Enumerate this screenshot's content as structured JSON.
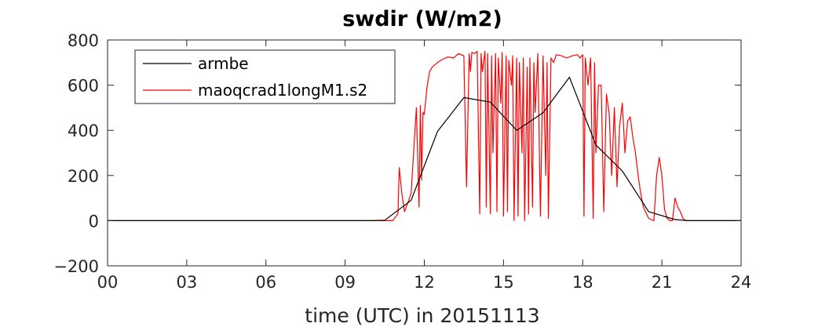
{
  "chart_data": {
    "type": "line",
    "title": "swdir  (W/m2)",
    "xlabel": "time (UTC) in 20151113",
    "ylabel": "",
    "xlim": [
      0,
      24
    ],
    "ylim": [
      -200,
      800
    ],
    "xticks": [
      0,
      3,
      6,
      9,
      12,
      15,
      18,
      21,
      24
    ],
    "xtick_labels": [
      "00",
      "03",
      "06",
      "09",
      "12",
      "15",
      "18",
      "21",
      "24"
    ],
    "yticks": [
      -200,
      0,
      200,
      400,
      600,
      800
    ],
    "ytick_labels": [
      "−200",
      "0",
      "200",
      "400",
      "600",
      "800"
    ],
    "grid": false,
    "legend_position": "top-left",
    "series": [
      {
        "name": "armbe",
        "color": "#000000",
        "x": [
          0,
          1,
          2,
          3,
          4,
          5,
          6,
          7,
          8,
          9,
          10,
          10.5,
          11.5,
          12.5,
          13.5,
          14.5,
          15.5,
          16.5,
          17.5,
          18.5,
          19.5,
          20.5,
          21.5,
          22,
          23,
          24
        ],
        "y": [
          0,
          0,
          0,
          0,
          0,
          0,
          0,
          0,
          0,
          0,
          0,
          2,
          90,
          395,
          545,
          525,
          400,
          478,
          635,
          335,
          220,
          40,
          5,
          0,
          0,
          0
        ]
      },
      {
        "name": "maoqcrad1longM1.s2",
        "color": "#ff0000",
        "x": [
          0,
          10.8,
          11.0,
          11.05,
          11.15,
          11.25,
          11.5,
          11.7,
          11.8,
          11.85,
          11.9,
          11.95,
          12.0,
          12.1,
          12.2,
          12.3,
          12.5,
          12.7,
          12.9,
          13.1,
          13.3,
          13.5,
          13.6,
          13.7,
          13.75,
          13.8,
          13.9,
          14.0,
          14.1,
          14.15,
          14.2,
          14.3,
          14.35,
          14.4,
          14.5,
          14.55,
          14.6,
          14.7,
          14.75,
          14.8,
          14.9,
          14.95,
          15.0,
          15.1,
          15.15,
          15.2,
          15.3,
          15.35,
          15.4,
          15.5,
          15.55,
          15.6,
          15.7,
          15.75,
          15.8,
          15.9,
          15.95,
          16.0,
          16.1,
          16.15,
          16.2,
          16.3,
          16.4,
          16.5,
          16.6,
          16.65,
          16.7,
          16.8,
          16.9,
          17.0,
          17.2,
          17.4,
          17.6,
          17.8,
          17.9,
          18.0,
          18.05,
          18.1,
          18.2,
          18.3,
          18.4,
          18.45,
          18.5,
          18.6,
          18.7,
          18.8,
          18.9,
          19.0,
          19.1,
          19.2,
          19.3,
          19.4,
          19.5,
          19.6,
          19.7,
          19.8,
          19.9,
          20.0,
          20.1,
          20.2,
          20.3,
          20.5,
          20.7,
          20.8,
          20.9,
          21.0,
          21.1,
          21.2,
          21.3,
          21.4,
          21.5,
          21.6,
          21.7,
          21.8,
          21.9,
          22.0,
          24
        ],
        "y": [
          0,
          0,
          30,
          235,
          120,
          40,
          120,
          500,
          60,
          510,
          180,
          480,
          470,
          590,
          660,
          680,
          700,
          715,
          725,
          720,
          740,
          730,
          150,
          740,
          660,
          745,
          740,
          750,
          30,
          740,
          660,
          750,
          60,
          740,
          30,
          730,
          300,
          740,
          40,
          720,
          520,
          745,
          20,
          730,
          40,
          710,
          600,
          730,
          0,
          720,
          20,
          700,
          300,
          720,
          0,
          680,
          30,
          720,
          60,
          700,
          480,
          740,
          20,
          730,
          200,
          700,
          10,
          720,
          700,
          735,
          730,
          720,
          730,
          735,
          720,
          735,
          20,
          720,
          600,
          720,
          10,
          700,
          300,
          600,
          600,
          40,
          560,
          480,
          200,
          500,
          150,
          420,
          520,
          300,
          440,
          460,
          370,
          300,
          200,
          120,
          60,
          10,
          0,
          200,
          280,
          200,
          50,
          10,
          0,
          0,
          100,
          60,
          40,
          10,
          0,
          0,
          0
        ]
      }
    ]
  }
}
